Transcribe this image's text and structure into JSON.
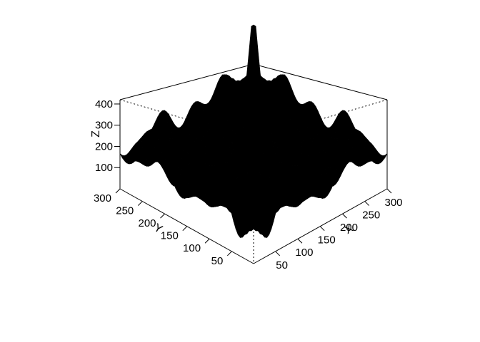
{
  "chart_data": {
    "type": "surface",
    "title": "",
    "xlabel": "X",
    "ylabel": "Y",
    "zlabel": "Z",
    "x_ticks": [
      50,
      100,
      150,
      200,
      250,
      300
    ],
    "y_ticks": [
      50,
      100,
      150,
      200,
      250,
      300
    ],
    "z_ticks": [
      100,
      200,
      300,
      400
    ],
    "xlim": [
      1,
      300
    ],
    "ylim": [
      1,
      300
    ],
    "zlim": [
      0,
      420
    ],
    "surface_summary": {
      "edge_peaks_z": 330,
      "central_spike_z": 420,
      "center_valley_z": 0,
      "mean_rim_z": 180
    },
    "surface_color": "#000000",
    "background_color": "#ffffff"
  }
}
